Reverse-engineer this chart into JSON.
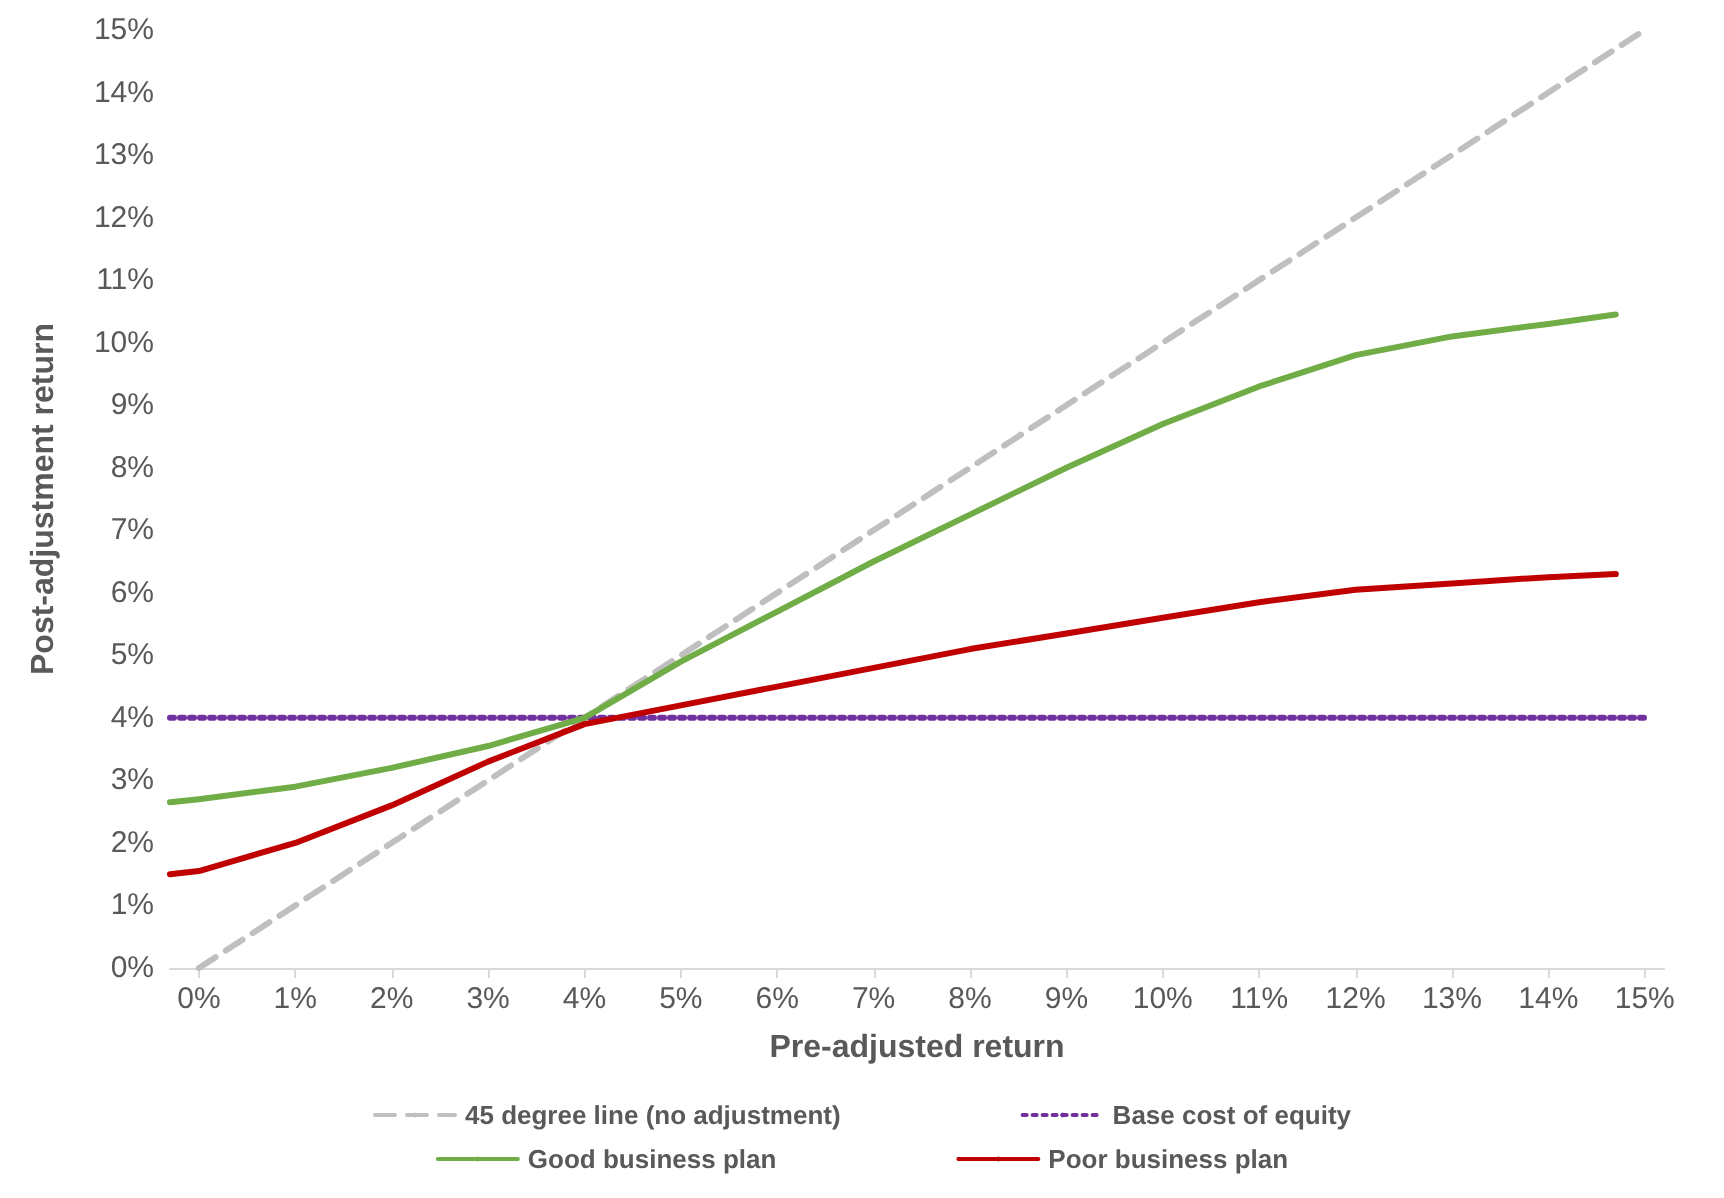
{
  "chart_data": {
    "type": "line",
    "xlabel": "Pre-adjusted return",
    "ylabel": "Post-adjustment return",
    "xlim": [
      -0.3,
      15.2
    ],
    "ylim": [
      0,
      15
    ],
    "xticks": [
      {
        "value": 0,
        "label": "0%"
      },
      {
        "value": 1,
        "label": "1%"
      },
      {
        "value": 2,
        "label": "2%"
      },
      {
        "value": 3,
        "label": "3%"
      },
      {
        "value": 4,
        "label": "4%"
      },
      {
        "value": 5,
        "label": "5%"
      },
      {
        "value": 6,
        "label": "6%"
      },
      {
        "value": 7,
        "label": "7%"
      },
      {
        "value": 8,
        "label": "8%"
      },
      {
        "value": 9,
        "label": "9%"
      },
      {
        "value": 10,
        "label": "10%"
      },
      {
        "value": 11,
        "label": "11%"
      },
      {
        "value": 12,
        "label": "12%"
      },
      {
        "value": 13,
        "label": "13%"
      },
      {
        "value": 14,
        "label": "14%"
      },
      {
        "value": 15,
        "label": "15%"
      }
    ],
    "yticks": [
      {
        "value": 0,
        "label": "0%"
      },
      {
        "value": 1,
        "label": "1%"
      },
      {
        "value": 2,
        "label": "2%"
      },
      {
        "value": 3,
        "label": "3%"
      },
      {
        "value": 4,
        "label": "4%"
      },
      {
        "value": 5,
        "label": "5%"
      },
      {
        "value": 6,
        "label": "6%"
      },
      {
        "value": 7,
        "label": "7%"
      },
      {
        "value": 8,
        "label": "8%"
      },
      {
        "value": 9,
        "label": "9%"
      },
      {
        "value": 10,
        "label": "10%"
      },
      {
        "value": 11,
        "label": "11%"
      },
      {
        "value": 12,
        "label": "12%"
      },
      {
        "value": 13,
        "label": "13%"
      },
      {
        "value": 14,
        "label": "14%"
      },
      {
        "value": 15,
        "label": "15%"
      }
    ],
    "grid": false,
    "legend": "bottom",
    "marker": "none",
    "series": [
      {
        "name": "45 degree line (no adjustment)",
        "color": "#bfbfbf",
        "line_style": "dashed",
        "x": [
          0,
          15
        ],
        "values": [
          0,
          15
        ]
      },
      {
        "name": "Base cost of equity",
        "color": "#7030a0",
        "line_style": "dotted",
        "x": [
          -0.3,
          15
        ],
        "values": [
          4,
          4
        ]
      },
      {
        "name": "Good business plan",
        "color": "#70ad47",
        "line_style": "solid",
        "x": [
          -0.3,
          0,
          1,
          2,
          3,
          4,
          5,
          6,
          7,
          8,
          9,
          10,
          11,
          12,
          13,
          14,
          14.7
        ],
        "values": [
          2.65,
          2.7,
          2.9,
          3.2,
          3.55,
          4.0,
          4.9,
          5.7,
          6.5,
          7.25,
          8.0,
          8.7,
          9.3,
          9.8,
          10.1,
          10.3,
          10.45
        ]
      },
      {
        "name": "Poor business plan",
        "color": "#c00000",
        "line_style": "solid",
        "x": [
          -0.3,
          0,
          1,
          2,
          3,
          4,
          5,
          6,
          7,
          8,
          9,
          10,
          11,
          12,
          13,
          14,
          14.7
        ],
        "values": [
          1.5,
          1.55,
          2.0,
          2.6,
          3.3,
          3.9,
          4.2,
          4.5,
          4.8,
          5.1,
          5.35,
          5.6,
          5.85,
          6.05,
          6.15,
          6.25,
          6.3
        ]
      }
    ]
  }
}
